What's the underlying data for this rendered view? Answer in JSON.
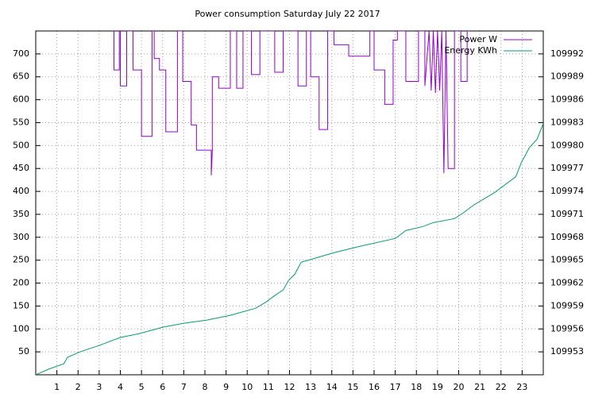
{
  "chart_data": {
    "type": "line",
    "title": "Power consumption Saturday July 22 2017",
    "xlim": [
      0,
      24
    ],
    "xticks": [
      1,
      2,
      3,
      4,
      5,
      6,
      7,
      8,
      9,
      10,
      11,
      12,
      13,
      14,
      15,
      16,
      17,
      18,
      19,
      20,
      21,
      22,
      23
    ],
    "ylim": [
      0,
      750
    ],
    "yticks": [
      50,
      100,
      150,
      200,
      250,
      300,
      350,
      400,
      450,
      500,
      550,
      600,
      650,
      700
    ],
    "y2lim": [
      109950,
      109995
    ],
    "y2ticks": [
      109953,
      109956,
      109959,
      109962,
      109965,
      109968,
      109971,
      109974,
      109977,
      109980,
      109983,
      109986,
      109989,
      109992
    ],
    "grid": true,
    "legend": "top-right",
    "series": [
      {
        "name": "Power W",
        "color": "#9400d3",
        "x": [
          3.7,
          3.7,
          3.95,
          3.95,
          4.0,
          4.0,
          4.3,
          4.3,
          4.6,
          4.6,
          5.0,
          5.0,
          5.5,
          5.5,
          5.6,
          5.6,
          5.85,
          5.85,
          6.15,
          6.15,
          6.7,
          6.7,
          6.95,
          6.95,
          7.35,
          7.35,
          7.6,
          7.6,
          8.3,
          8.3,
          8.35,
          8.35,
          8.65,
          8.65,
          9.2,
          9.2,
          9.5,
          9.5,
          9.8,
          9.8,
          10.2,
          10.2,
          10.6,
          10.6,
          11.3,
          11.3,
          11.7,
          11.7,
          12.4,
          12.4,
          12.8,
          12.8,
          13.0,
          13.0,
          13.4,
          13.4,
          13.8,
          13.8,
          14.1,
          14.1,
          14.8,
          14.8,
          15.8,
          15.8,
          16.0,
          16.0,
          16.5,
          16.5,
          16.9,
          16.9,
          17.1,
          17.1,
          17.5,
          17.5,
          18.1,
          18.1,
          18.4,
          18.4,
          18.6,
          18.7,
          18.8,
          18.9,
          19.0,
          19.1,
          19.2,
          19.3,
          19.4,
          19.5,
          19.8,
          19.8,
          20.1,
          20.1,
          20.4,
          20.4,
          20.5
        ],
        "values": [
          750,
          665,
          665,
          750,
          750,
          630,
          630,
          750,
          750,
          665,
          665,
          520,
          520,
          750,
          750,
          690,
          690,
          665,
          665,
          530,
          530,
          750,
          750,
          640,
          640,
          545,
          545,
          490,
          490,
          435,
          490,
          650,
          650,
          625,
          625,
          750,
          750,
          625,
          625,
          750,
          750,
          655,
          655,
          750,
          750,
          660,
          660,
          750,
          750,
          630,
          630,
          750,
          750,
          650,
          650,
          535,
          535,
          750,
          750,
          720,
          720,
          695,
          695,
          750,
          750,
          665,
          665,
          590,
          590,
          730,
          730,
          750,
          750,
          640,
          640,
          750,
          750,
          630,
          750,
          620,
          750,
          615,
          750,
          620,
          750,
          440,
          750,
          450,
          450,
          750,
          750,
          640,
          640,
          750,
          750
        ]
      },
      {
        "name": "Energy KWh",
        "color": "#009e73",
        "axis": "y2",
        "x": [
          0,
          0.6,
          1.33,
          1.5,
          2.1,
          3.0,
          4.0,
          4.9,
          6.0,
          7.0,
          8.1,
          9.2,
          10.4,
          10.9,
          11.3,
          11.7,
          11.95,
          12.25,
          12.55,
          13.2,
          14.1,
          15.3,
          17.0,
          17.5,
          18.3,
          18.8,
          19.8,
          20.2,
          20.7,
          21.7,
          22.7,
          22.95,
          23.35,
          23.7,
          24.0
        ],
        "values": [
          109950,
          109950.73,
          109951.45,
          109952.28,
          109953.01,
          109953.84,
          109954.88,
          109955.39,
          109956.22,
          109956.74,
          109957.16,
          109957.78,
          109958.71,
          109959.54,
          109960.37,
          109961.1,
          109962.34,
          109963.17,
          109964.73,
          109965.25,
          109965.98,
          109966.8,
          109967.84,
          109968.88,
          109969.4,
          109969.92,
          109970.44,
          109971.16,
          109972.2,
          109973.86,
          109975.93,
          109977.7,
          109979.77,
          109980.81,
          109982.88
        ]
      }
    ]
  }
}
